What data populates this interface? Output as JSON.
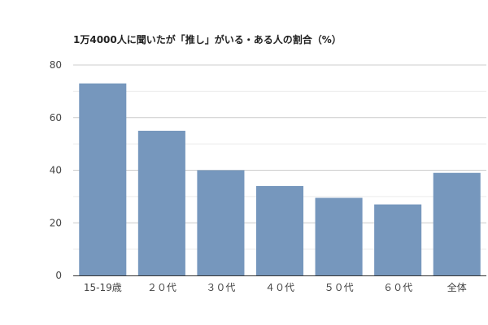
{
  "chart_data": {
    "type": "bar",
    "title": "1万4000人に聞いたが「推し」がいる・ある人の割合（%）",
    "categories": [
      "15-19歳",
      "２０代",
      "３０代",
      "４０代",
      "５０代",
      "６０代",
      "全体"
    ],
    "values": [
      73,
      55,
      40,
      34,
      29.5,
      27,
      39
    ],
    "xlabel": "",
    "ylabel": "",
    "ylim": [
      0,
      80
    ],
    "yticks": [
      0,
      20,
      40,
      60,
      80
    ],
    "grid": true,
    "bar_color": "#7697bd",
    "grid_color": "#cccccc",
    "minor_grid_color": "#ebebeb"
  }
}
